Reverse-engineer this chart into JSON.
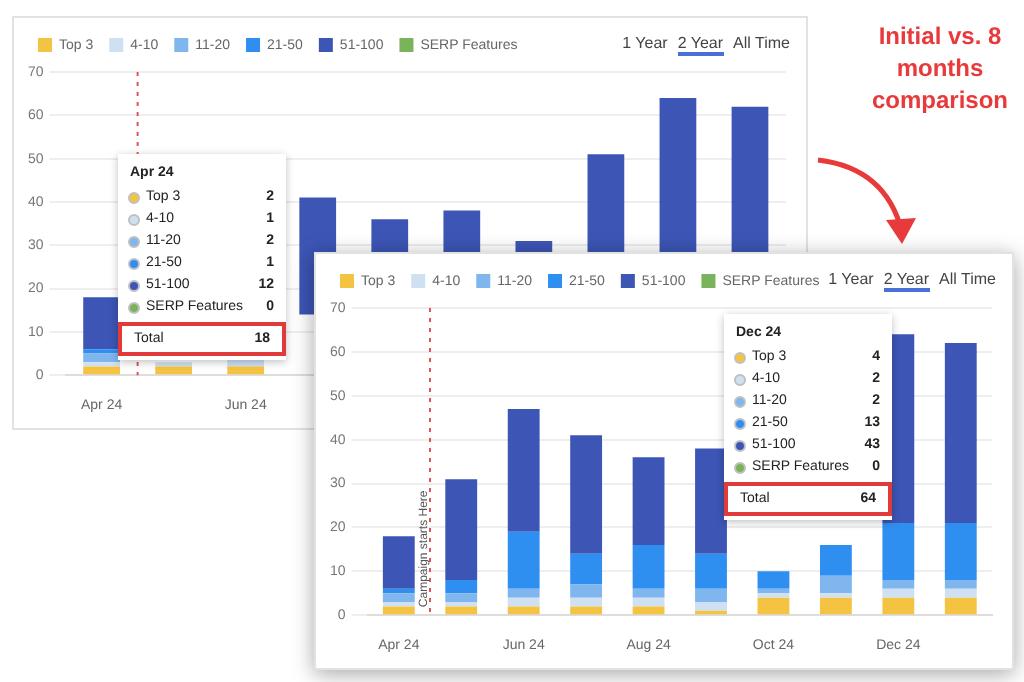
{
  "chart_data": [
    {
      "type": "bar",
      "stacked": true,
      "legend": "top left",
      "grid": "y",
      "categories": [
        "Apr 24",
        null,
        "Jun 24",
        null,
        null,
        null,
        null,
        null,
        null,
        null
      ],
      "series": [
        {
          "name": "Top 3",
          "color": "#f5c342",
          "values": [
            2,
            2,
            2,
            null,
            null,
            null,
            null,
            null,
            null,
            null
          ]
        },
        {
          "name": "4-10",
          "color": "#cfe0f3",
          "values": [
            1,
            1,
            2,
            null,
            null,
            null,
            null,
            null,
            null,
            null
          ]
        },
        {
          "name": "11-20",
          "color": "#7fb6ee",
          "values": [
            2,
            null,
            null,
            null,
            null,
            null,
            null,
            null,
            null,
            null
          ]
        },
        {
          "name": "21-50",
          "color": "#2f8ff0",
          "values": [
            1,
            null,
            null,
            null,
            null,
            null,
            null,
            null,
            null,
            null
          ]
        },
        {
          "name": "51-100",
          "color": "#3d55b5",
          "values": [
            12,
            null,
            null,
            27,
            20,
            24,
            21,
            35,
            43,
            41
          ],
          "base": [
            null,
            null,
            null,
            14,
            16,
            14,
            10,
            16,
            21,
            21
          ]
        },
        {
          "name": "SERP Features",
          "color": "#7bb35a",
          "values": [
            0,
            null,
            null,
            null,
            null,
            null,
            null,
            null,
            null,
            null
          ]
        }
      ],
      "ylim": [
        0,
        70
      ],
      "yticks": [
        0,
        10,
        20,
        30,
        40,
        50,
        60,
        70
      ],
      "ref_lines": [
        {
          "axis": "x",
          "value": "Apr 24",
          "color": "#e05555",
          "line_style": "dotted"
        }
      ],
      "annotations": [
        "1 Year",
        "2 Year",
        "All Time",
        "Apr 24",
        "Top 3",
        "2",
        "4-10",
        "1",
        "11-20",
        "2",
        "21-50",
        "1",
        "51-100",
        "12",
        "SERP Features",
        "0",
        "Total",
        "18",
        "Initial vs. 8 months comparison"
      ]
    },
    {
      "type": "bar",
      "stacked": true,
      "legend": "top left",
      "grid": "y",
      "categories": [
        "Apr 24",
        null,
        "Jun 24",
        null,
        "Aug 24",
        null,
        "Oct 24",
        null,
        "Dec 24",
        null
      ],
      "series": [
        {
          "name": "Top 3",
          "color": "#f5c342",
          "values": [
            2,
            2,
            2,
            2,
            2,
            1,
            4,
            4,
            4,
            4
          ]
        },
        {
          "name": "4-10",
          "color": "#cfe0f3",
          "values": [
            1,
            1,
            2,
            2,
            2,
            2,
            1,
            1,
            2,
            2
          ]
        },
        {
          "name": "11-20",
          "color": "#7fb6ee",
          "values": [
            2,
            2,
            2,
            3,
            2,
            3,
            1,
            4,
            2,
            2
          ]
        },
        {
          "name": "21-50",
          "color": "#2f8ff0",
          "values": [
            1,
            3,
            13,
            7,
            10,
            8,
            4,
            7,
            13,
            13
          ]
        },
        {
          "name": "51-100",
          "color": "#3d55b5",
          "values": [
            12,
            23,
            28,
            27,
            20,
            24,
            null,
            null,
            43,
            41
          ]
        },
        {
          "name": "SERP Features",
          "color": "#7bb35a",
          "values": [
            0,
            0,
            0,
            0,
            0,
            0,
            0,
            0,
            0,
            0
          ]
        }
      ],
      "ylim": [
        0,
        70
      ],
      "yticks": [
        0,
        10,
        20,
        30,
        40,
        50,
        60,
        70
      ],
      "ref_lines": [
        {
          "axis": "x",
          "value": "Apr 24",
          "label": "Campaign starts Here",
          "color": "#e05555",
          "line_style": "dotted"
        }
      ],
      "annotations": [
        "1 Year",
        "2 Year",
        "All Time",
        "Dec 24",
        "Top 3",
        "4",
        "4-10",
        "2",
        "11-20",
        "2",
        "21-50",
        "13",
        "51-100",
        "43",
        "SERP Features",
        "0",
        "Total",
        "64"
      ]
    }
  ]
}
